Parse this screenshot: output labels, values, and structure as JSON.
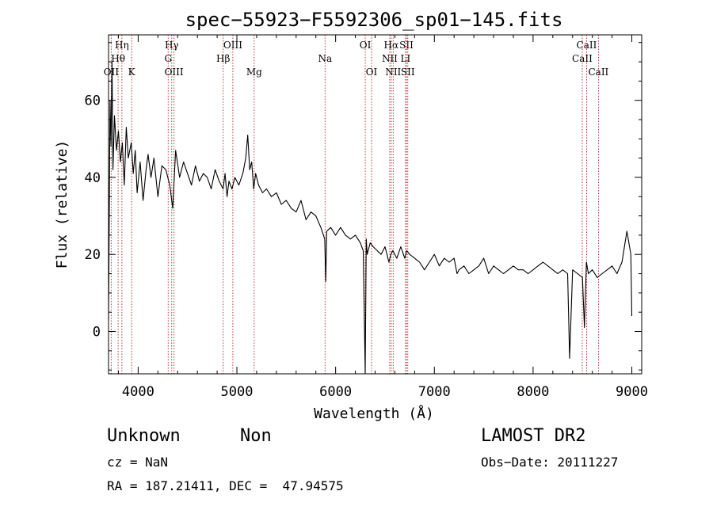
{
  "chart_data": {
    "type": "line",
    "title": "spec−55923−F5592306_sp01−145.fits",
    "xlabel": "Wavelength (Å)",
    "ylabel": "Flux (relative)",
    "xlim": [
      3700,
      9100
    ],
    "ylim": [
      -11,
      77
    ],
    "xticks": [
      4000,
      5000,
      6000,
      7000,
      8000,
      9000
    ],
    "yticks": [
      0,
      20,
      40,
      60
    ],
    "grid": false,
    "series": [
      {
        "x": [
          3700,
          3715,
          3725,
          3735,
          3745,
          3760,
          3780,
          3800,
          3820,
          3840,
          3860,
          3880,
          3900,
          3930,
          3950,
          3970,
          3990,
          4020,
          4050,
          4080,
          4100,
          4130,
          4160,
          4200,
          4240,
          4280,
          4320,
          4350,
          4380,
          4420,
          4460,
          4500,
          4540,
          4580,
          4620,
          4660,
          4700,
          4740,
          4780,
          4820,
          4860,
          4880,
          4900,
          4920,
          4950,
          4980,
          5020,
          5060,
          5090,
          5110,
          5130,
          5150,
          5170,
          5190,
          5220,
          5260,
          5300,
          5350,
          5400,
          5450,
          5500,
          5550,
          5600,
          5650,
          5700,
          5750,
          5800,
          5850,
          5890,
          5900,
          5910,
          5950,
          6000,
          6050,
          6100,
          6150,
          6200,
          6250,
          6280,
          6300,
          6310,
          6320,
          6350,
          6380,
          6420,
          6460,
          6500,
          6540,
          6560,
          6580,
          6620,
          6660,
          6700,
          6720,
          6750,
          6800,
          6850,
          6900,
          6950,
          7000,
          7050,
          7100,
          7150,
          7200,
          7230,
          7250,
          7300,
          7350,
          7400,
          7450,
          7500,
          7550,
          7600,
          7650,
          7700,
          7750,
          7800,
          7850,
          7900,
          7950,
          8000,
          8050,
          8100,
          8150,
          8200,
          8250,
          8300,
          8350,
          8370,
          8400,
          8450,
          8500,
          8520,
          8540,
          8560,
          8600,
          8650,
          8700,
          8750,
          8800,
          8850,
          8900,
          8950,
          8990,
          9000
        ],
        "y": [
          3,
          60,
          48,
          70,
          42,
          56,
          47,
          52,
          44,
          49,
          38,
          53,
          45,
          49,
          41,
          47,
          36,
          44,
          34,
          42,
          46,
          40,
          45,
          35,
          43,
          42,
          38,
          32,
          47,
          40,
          44,
          41,
          38,
          43,
          39,
          41,
          40,
          37,
          42,
          39,
          37,
          41,
          35,
          39,
          37,
          40,
          38,
          41,
          45,
          51,
          42,
          44,
          37,
          41,
          38,
          36,
          37,
          35,
          36,
          33,
          34,
          32,
          31,
          34,
          29,
          31,
          30,
          27,
          24,
          13,
          26,
          27,
          25,
          27,
          25,
          24,
          25,
          23,
          21,
          -11,
          24,
          20,
          23,
          22,
          21,
          20,
          22,
          18,
          20,
          21,
          19,
          22,
          19,
          21,
          20,
          19,
          18,
          16,
          18,
          20,
          17,
          19,
          18,
          19,
          15,
          16,
          17,
          15,
          16,
          17,
          19,
          15,
          17,
          16,
          15,
          16,
          17,
          16,
          16,
          15,
          16,
          17,
          18,
          17,
          16,
          15,
          16,
          15,
          -7,
          16,
          15,
          14,
          1,
          18,
          15,
          16,
          14,
          15,
          16,
          17,
          15,
          18,
          26,
          20,
          4
        ]
      }
    ],
    "line_markers": [
      {
        "label": "OII",
        "x": 3727,
        "row": 3
      },
      {
        "label": "Hη",
        "x": 3835,
        "row": 1
      },
      {
        "label": "Hθ",
        "x": 3797,
        "row": 2
      },
      {
        "label": "K",
        "x": 3934,
        "row": 3
      },
      {
        "label": "Hγ",
        "x": 4340,
        "row": 1
      },
      {
        "label": "G",
        "x": 4304,
        "row": 2
      },
      {
        "label": "OIII",
        "x": 4363,
        "row": 3
      },
      {
        "label": "OIII",
        "x": 4959,
        "row": 1
      },
      {
        "label": "Hβ",
        "x": 4861,
        "row": 2
      },
      {
        "label": "Mg",
        "x": 5175,
        "row": 3
      },
      {
        "label": "Na",
        "x": 5893,
        "row": 2
      },
      {
        "label": "OI",
        "x": 6300,
        "row": 1
      },
      {
        "label": "OI",
        "x": 6364,
        "row": 3
      },
      {
        "label": "Hα",
        "x": 6563,
        "row": 1
      },
      {
        "label": "NII",
        "x": 6548,
        "row": 2
      },
      {
        "label": "NII",
        "x": 6583,
        "row": 3
      },
      {
        "label": "SII",
        "x": 6717,
        "row": 1
      },
      {
        "label": "LI",
        "x": 6708,
        "row": 2
      },
      {
        "label": "SII",
        "x": 6731,
        "row": 3
      },
      {
        "label": "CaII",
        "x": 8542,
        "row": 1
      },
      {
        "label": "CaII",
        "x": 8498,
        "row": 2
      },
      {
        "label": "CaII",
        "x": 8662,
        "row": 3
      }
    ]
  },
  "info": {
    "class_label": "Unknown",
    "subclass_label": "Non",
    "survey": "LAMOST DR2",
    "cz": "cz = NaN",
    "obs_date": "Obs−Date: 20111227",
    "coords": "RA = 187.21411, DEC =  47.94575"
  }
}
